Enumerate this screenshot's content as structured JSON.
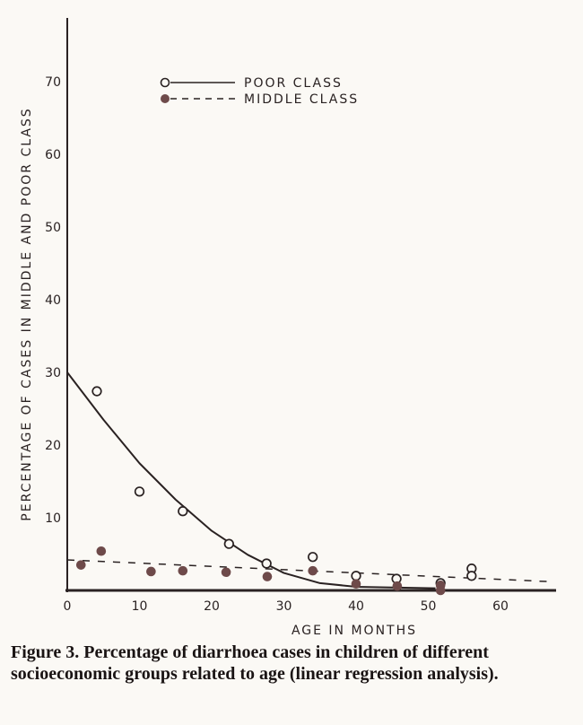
{
  "chart_data": {
    "type": "scatter",
    "title": "",
    "xlabel": "AGE IN MONTHS",
    "ylabel": "PERCENTAGE OF CASES IN MIDDLE AND POOR CLASS",
    "xlim": [
      0,
      68
    ],
    "ylim": [
      0,
      75
    ],
    "xticks": [
      0,
      10,
      20,
      30,
      40,
      50,
      60
    ],
    "yticks": [
      10,
      20,
      30,
      40,
      50,
      60,
      70
    ],
    "grid": false,
    "legend_position": "top-center",
    "series": [
      {
        "name": "POOR CLASS",
        "marker": "open-circle",
        "line": "solid",
        "points": [
          [
            4.1,
            27.4
          ],
          [
            10,
            13.6
          ],
          [
            16,
            10.9
          ],
          [
            22.4,
            6.4
          ],
          [
            27.6,
            3.7
          ],
          [
            34,
            4.6
          ],
          [
            40,
            2.0
          ],
          [
            45.6,
            1.6
          ],
          [
            51.7,
            1.0
          ],
          [
            56,
            3.0
          ],
          [
            56,
            2.0
          ]
        ],
        "fit": [
          [
            0,
            30
          ],
          [
            5,
            23.5
          ],
          [
            10,
            17.5
          ],
          [
            15,
            12.5
          ],
          [
            20,
            8.2
          ],
          [
            25,
            4.9
          ],
          [
            30,
            2.4
          ],
          [
            35,
            1.0
          ],
          [
            40,
            0.5
          ],
          [
            45,
            0.4
          ],
          [
            51,
            0.3
          ]
        ]
      },
      {
        "name": "MIDDLE CLASS",
        "marker": "filled-circle",
        "line": "dashed",
        "points": [
          [
            1.9,
            3.5
          ],
          [
            4.7,
            5.4
          ],
          [
            11.6,
            2.6
          ],
          [
            16,
            2.7
          ],
          [
            22,
            2.5
          ],
          [
            27.7,
            1.9
          ],
          [
            34,
            2.7
          ],
          [
            40,
            0.9
          ],
          [
            45.7,
            0.6
          ],
          [
            51.7,
            0.7
          ],
          [
            51.7,
            0.0
          ]
        ],
        "fit": [
          [
            0,
            4.2
          ],
          [
            67,
            1.2
          ]
        ]
      }
    ]
  },
  "caption": {
    "label": "Figure 3.",
    "text": "Percentage of diarrhoea cases in children of different socioeconomic groups related to age (linear regression analysis)."
  },
  "colors": {
    "ink": "#2a2222",
    "filled": "#6e4a4a"
  }
}
